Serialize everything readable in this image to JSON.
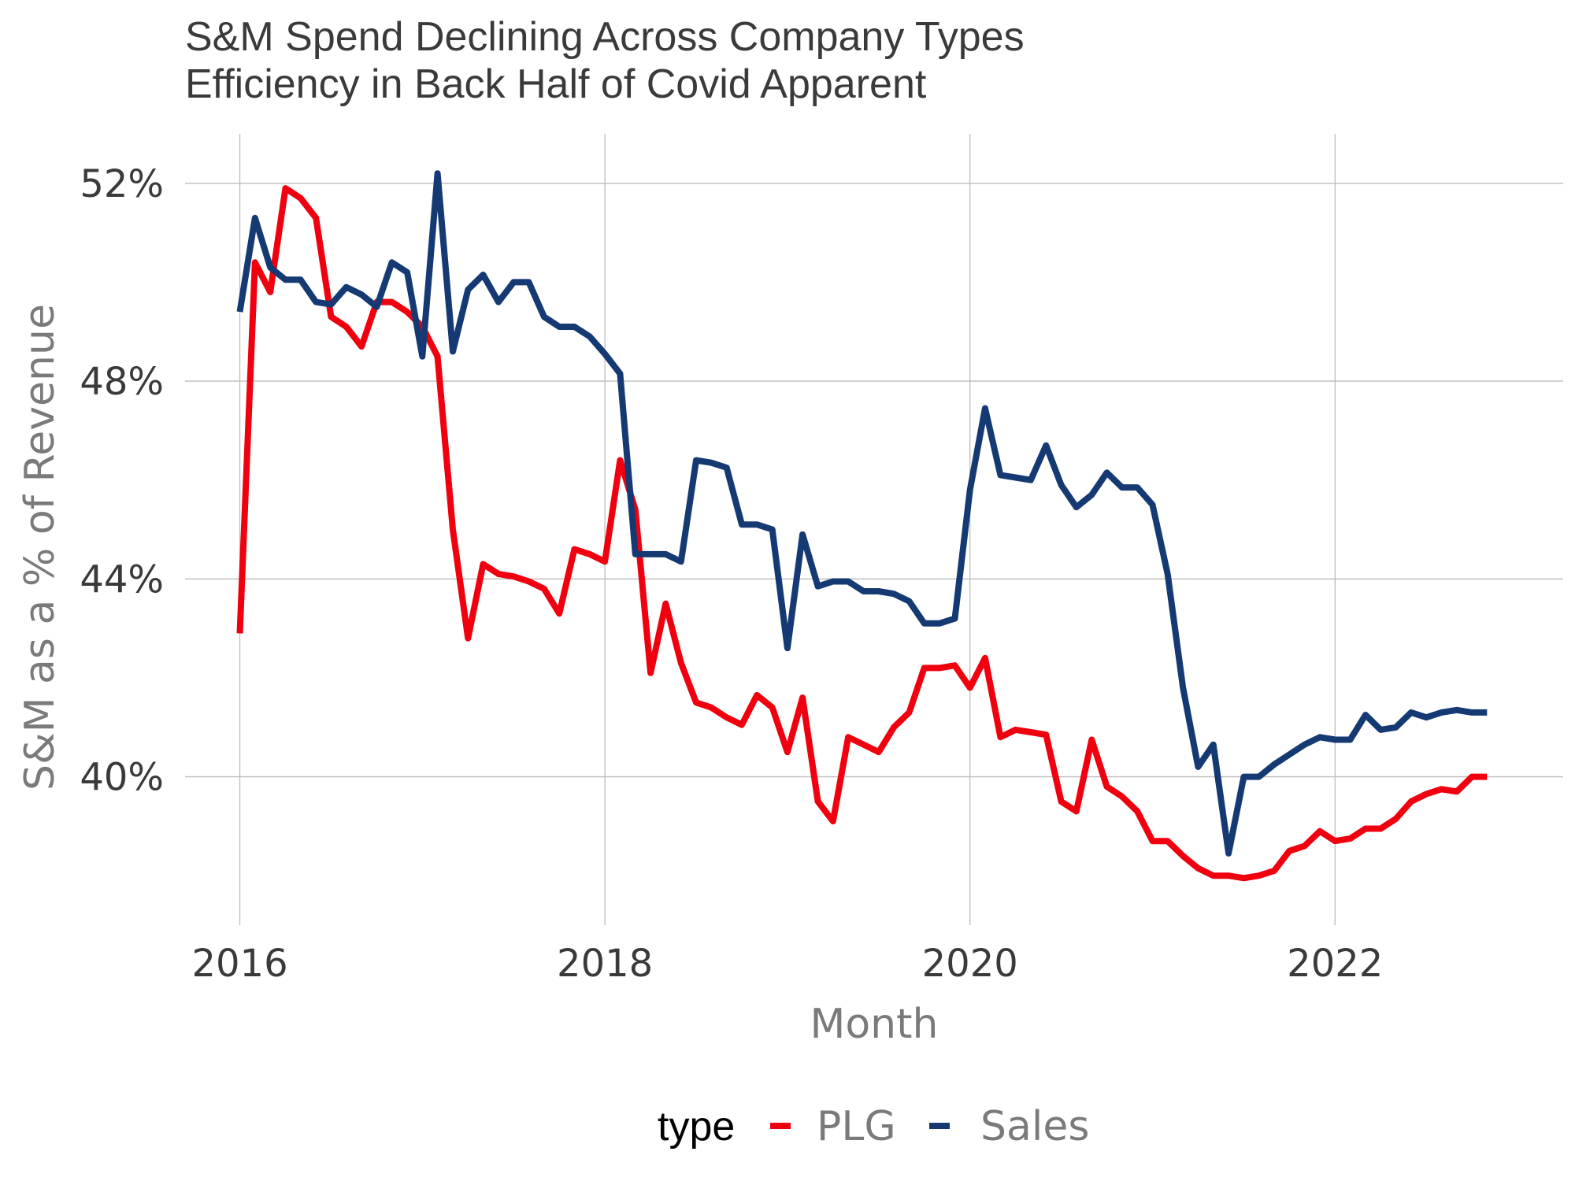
{
  "chart_data": {
    "type": "line",
    "title": "S&M Spend Declining Across Company Types",
    "subtitle": "Efficiency in Back Half of Covid Apparent",
    "xlabel": "Month",
    "ylabel": "S&M as a % of Revenue",
    "xlim": [
      2015.7,
      2023.25
    ],
    "ylim": [
      37.0,
      53.0
    ],
    "x_ticks": [
      2016,
      2018,
      2020,
      2022
    ],
    "x_tick_labels": [
      "2016",
      "2018",
      "2020",
      "2022"
    ],
    "y_ticks": [
      40,
      44,
      48,
      52
    ],
    "y_tick_labels": [
      "40%",
      "44%",
      "48%",
      "52%"
    ],
    "grid": true,
    "legend": {
      "title": "type",
      "position": "bottom"
    },
    "x": [
      2016.0,
      2016.083,
      2016.167,
      2016.25,
      2016.333,
      2016.417,
      2016.5,
      2016.583,
      2016.667,
      2016.75,
      2016.833,
      2016.917,
      2017.0,
      2017.083,
      2017.167,
      2017.25,
      2017.333,
      2017.417,
      2017.5,
      2017.583,
      2017.667,
      2017.75,
      2017.833,
      2017.917,
      2018.0,
      2018.083,
      2018.167,
      2018.25,
      2018.333,
      2018.417,
      2018.5,
      2018.583,
      2018.667,
      2018.75,
      2018.833,
      2018.917,
      2019.0,
      2019.083,
      2019.167,
      2019.25,
      2019.333,
      2019.417,
      2019.5,
      2019.583,
      2019.667,
      2019.75,
      2019.833,
      2019.917,
      2020.0,
      2020.083,
      2020.167,
      2020.25,
      2020.333,
      2020.417,
      2020.5,
      2020.583,
      2020.667,
      2020.75,
      2020.833,
      2020.917,
      2021.0,
      2021.083,
      2021.167,
      2021.25,
      2021.333,
      2021.417,
      2021.5,
      2021.583,
      2021.667,
      2021.75,
      2021.833,
      2021.917,
      2022.0,
      2022.083,
      2022.167,
      2022.25,
      2022.333,
      2022.417,
      2022.5,
      2022.583,
      2022.667,
      2022.75,
      2022.833
    ],
    "series": [
      {
        "name": "PLG",
        "color": "#f0000f",
        "values": [
          42.9,
          50.4,
          49.8,
          51.9,
          51.7,
          51.3,
          49.3,
          49.1,
          48.7,
          49.6,
          49.6,
          49.4,
          49.1,
          48.5,
          45.0,
          42.8,
          44.3,
          44.1,
          44.05,
          43.95,
          43.8,
          43.3,
          44.6,
          44.5,
          44.35,
          46.4,
          45.4,
          42.1,
          43.5,
          42.3,
          41.5,
          41.4,
          41.2,
          41.05,
          41.65,
          41.4,
          40.5,
          41.6,
          39.5,
          39.1,
          40.8,
          40.65,
          40.5,
          41.0,
          41.3,
          42.2,
          42.2,
          42.25,
          41.8,
          42.4,
          40.8,
          40.95,
          40.9,
          40.85,
          39.5,
          39.3,
          40.75,
          39.8,
          39.6,
          39.3,
          38.7,
          38.7,
          38.4,
          38.15,
          38.0,
          38.0,
          37.95,
          38.0,
          38.1,
          38.5,
          38.6,
          38.9,
          38.7,
          38.75,
          38.95,
          38.95,
          39.15,
          39.5,
          39.65,
          39.75,
          39.7,
          40.0,
          40.0
        ]
      },
      {
        "name": "Sales",
        "color": "#153a73",
        "values": [
          49.4,
          51.3,
          50.3,
          50.05,
          50.05,
          49.6,
          49.55,
          49.9,
          49.75,
          49.5,
          50.4,
          50.2,
          48.5,
          52.2,
          48.6,
          49.85,
          50.15,
          49.6,
          50.0,
          50.0,
          49.3,
          49.1,
          49.1,
          48.9,
          48.55,
          48.15,
          44.5,
          44.5,
          44.5,
          44.35,
          46.4,
          46.35,
          46.25,
          45.1,
          45.1,
          45.0,
          42.6,
          44.9,
          43.85,
          43.95,
          43.95,
          43.75,
          43.75,
          43.7,
          43.55,
          43.1,
          43.1,
          43.2,
          45.8,
          47.45,
          46.1,
          46.05,
          46.0,
          46.7,
          45.9,
          45.45,
          45.7,
          46.15,
          45.85,
          45.85,
          45.5,
          44.1,
          41.8,
          40.2,
          40.65,
          38.45,
          40.0,
          40.0,
          40.25,
          40.45,
          40.65,
          40.8,
          40.75,
          40.75,
          41.25,
          40.95,
          41.0,
          41.3,
          41.2,
          41.3,
          41.35,
          41.3,
          41.3
        ]
      }
    ]
  }
}
